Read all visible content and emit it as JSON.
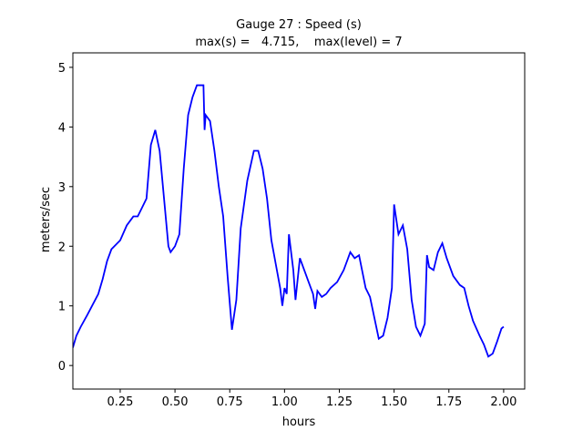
{
  "chart_data": {
    "type": "line",
    "title": "Gauge 27 : Speed (s)",
    "subtitle": "max(s) =   4.715,    max(level) = 7",
    "x_label": "hours",
    "y_label": "meters/sec",
    "x": [
      0.034,
      0.05,
      0.07,
      0.1,
      0.15,
      0.17,
      0.19,
      0.21,
      0.25,
      0.28,
      0.31,
      0.33,
      0.35,
      0.37,
      0.39,
      0.41,
      0.43,
      0.45,
      0.47,
      0.48,
      0.5,
      0.52,
      0.54,
      0.56,
      0.58,
      0.6,
      0.63,
      0.635,
      0.64,
      0.66,
      0.68,
      0.7,
      0.72,
      0.74,
      0.76,
      0.78,
      0.8,
      0.83,
      0.86,
      0.88,
      0.9,
      0.92,
      0.94,
      0.96,
      0.98,
      0.99,
      1.0,
      1.01,
      1.02,
      1.04,
      1.05,
      1.07,
      1.09,
      1.11,
      1.13,
      1.14,
      1.15,
      1.17,
      1.19,
      1.21,
      1.24,
      1.27,
      1.3,
      1.32,
      1.34,
      1.37,
      1.39,
      1.41,
      1.43,
      1.45,
      1.47,
      1.49,
      1.5,
      1.52,
      1.54,
      1.56,
      1.58,
      1.6,
      1.62,
      1.64,
      1.65,
      1.66,
      1.68,
      1.7,
      1.72,
      1.74,
      1.77,
      1.8,
      1.82,
      1.84,
      1.86,
      1.89,
      1.91,
      1.93,
      1.95,
      1.97,
      1.99,
      2.0
    ],
    "series": [
      {
        "name": "s",
        "color": "#0000ff",
        "values": [
          0.3,
          0.5,
          0.65,
          0.85,
          1.2,
          1.45,
          1.75,
          1.95,
          2.1,
          2.35,
          2.5,
          2.5,
          2.65,
          2.8,
          3.7,
          3.95,
          3.6,
          2.8,
          2.0,
          1.9,
          2.0,
          2.2,
          3.3,
          4.2,
          4.5,
          4.7,
          4.7,
          3.95,
          4.2,
          4.1,
          3.6,
          3.0,
          2.5,
          1.5,
          0.6,
          1.1,
          2.3,
          3.1,
          3.6,
          3.6,
          3.3,
          2.8,
          2.1,
          1.7,
          1.3,
          1.0,
          1.3,
          1.2,
          2.2,
          1.6,
          1.1,
          1.8,
          1.6,
          1.4,
          1.2,
          0.95,
          1.25,
          1.15,
          1.2,
          1.3,
          1.4,
          1.6,
          1.9,
          1.8,
          1.85,
          1.3,
          1.15,
          0.8,
          0.45,
          0.5,
          0.8,
          1.3,
          2.7,
          2.2,
          2.35,
          1.95,
          1.1,
          0.65,
          0.5,
          0.7,
          1.85,
          1.65,
          1.6,
          1.9,
          2.05,
          1.8,
          1.5,
          1.35,
          1.3,
          1.0,
          0.75,
          0.5,
          0.35,
          0.15,
          0.2,
          0.4,
          0.62,
          0.65
        ]
      }
    ],
    "xlim": [
      0.034,
      2.096
    ],
    "ylim": [
      -0.395,
      5.243
    ],
    "xticks": [
      {
        "value": 0.25,
        "label": "0.25"
      },
      {
        "value": 0.5,
        "label": "0.50"
      },
      {
        "value": 0.75,
        "label": "0.75"
      },
      {
        "value": 1,
        "label": "1.00"
      },
      {
        "value": 1.25,
        "label": "1.25"
      },
      {
        "value": 1.5,
        "label": "1.50"
      },
      {
        "value": 1.75,
        "label": "1.75"
      },
      {
        "value": 2,
        "label": "2.00"
      }
    ],
    "yticks": [
      0,
      1,
      2,
      3,
      4,
      5
    ]
  }
}
